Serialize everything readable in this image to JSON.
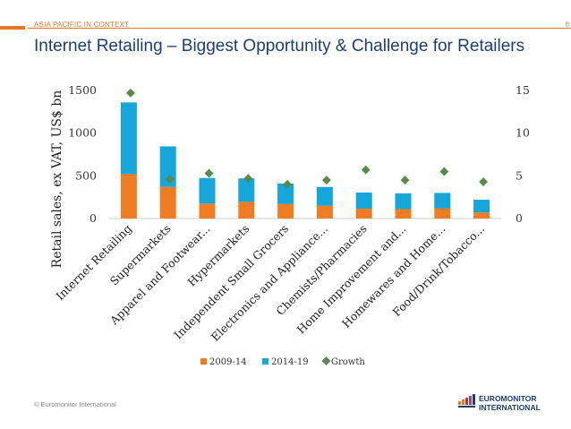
{
  "header": {
    "section_label": "ASIA PACIFIC IN CONTEXT",
    "page_number": "8",
    "title": "Internet Retailing – Biggest Opportunity & Challenge for Retailers"
  },
  "footer": {
    "copyright": "© Euromonitor International",
    "logo_line1": "EUROMONITOR",
    "logo_line2": "INTERNATIONAL"
  },
  "colors": {
    "accent": "#e8762b",
    "title": "#1b3f73",
    "series_2009": "#f07d23",
    "series_2014": "#17a6d9",
    "growth": "#5a8a4a"
  },
  "chart_data": {
    "type": "bar",
    "stacked": true,
    "title": "",
    "ylabel": "Retail sales, ex VAT, US$ bn",
    "y2label": "",
    "ylim": [
      0,
      1500
    ],
    "y2lim": [
      0,
      15
    ],
    "yticks": [
      0,
      500,
      1000,
      1500
    ],
    "y2ticks": [
      0,
      5,
      10,
      15
    ],
    "grid": false,
    "legend_position": "bottom",
    "categories": [
      "Internet Retailing",
      "Supermarkets",
      "Apparel and Footwear...",
      "Hypermarkets",
      "Independent Small Grocers",
      "Electronics and Appliance...",
      "Chemists/Pharmacies",
      "Home Improvement and...",
      "Homewares and Home...",
      "Food/Drink/Tobacco..."
    ],
    "series": [
      {
        "name": "2009-14",
        "type": "bar",
        "axis": "left",
        "values": [
          520,
          370,
          175,
          195,
          170,
          150,
          115,
          110,
          120,
          70
        ]
      },
      {
        "name": "2014-19",
        "type": "bar",
        "axis": "left",
        "values": [
          840,
          475,
          300,
          275,
          240,
          220,
          190,
          185,
          180,
          150
        ]
      },
      {
        "name": "Growth",
        "type": "marker",
        "axis": "right",
        "values": [
          14.7,
          4.6,
          5.3,
          4.7,
          4.0,
          4.5,
          5.7,
          4.5,
          5.5,
          4.3
        ]
      }
    ]
  }
}
